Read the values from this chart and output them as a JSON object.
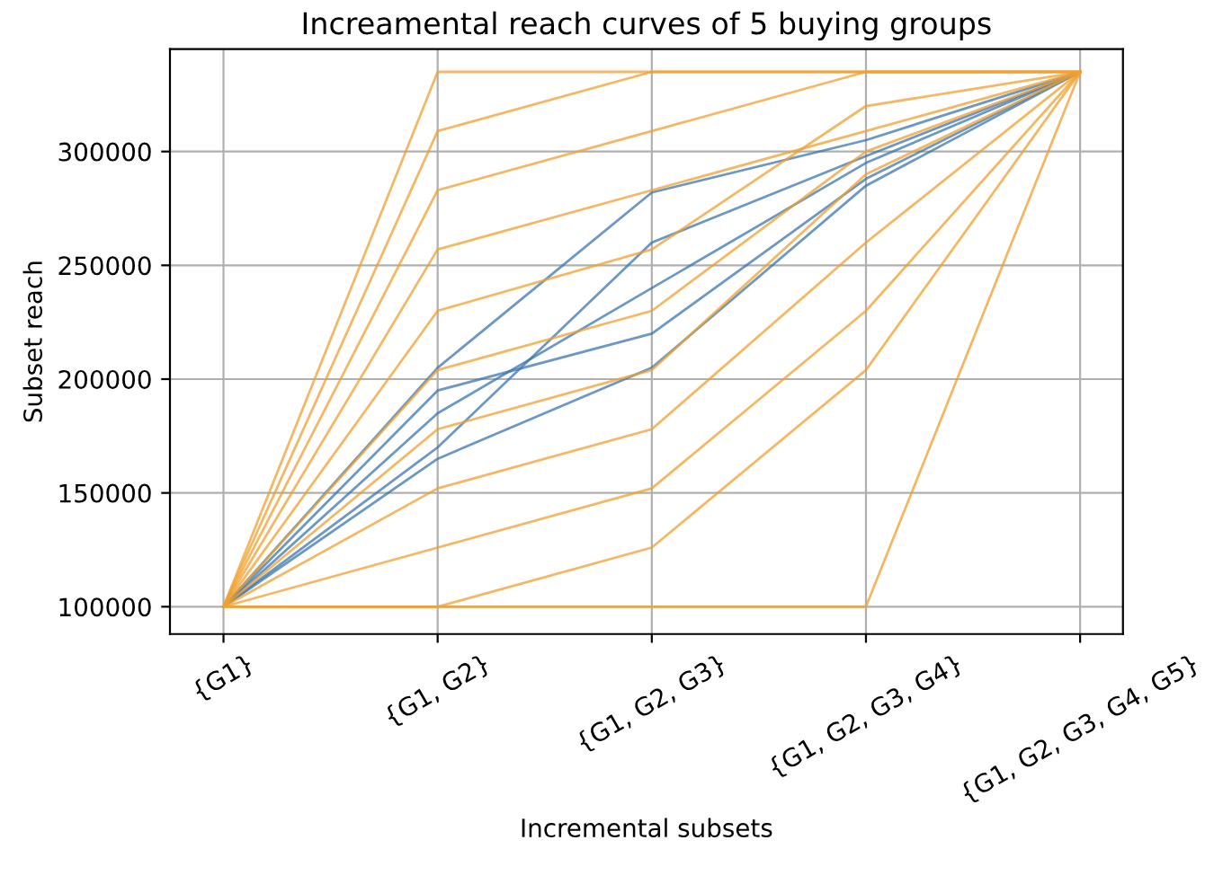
{
  "chart_data": {
    "type": "line",
    "title": "Increamental reach curves of 5 buying groups",
    "xlabel": "Incremental subsets",
    "ylabel": "Subset reach",
    "categories": [
      "{G1}",
      "{G1, G2}",
      "{G1, G2, G3}",
      "{G1, G2, G3, G4}",
      "{G1, G2, G3, G4, G5}"
    ],
    "ylim": [
      88000,
      345000
    ],
    "yticks": [
      100000,
      150000,
      200000,
      250000,
      300000
    ],
    "grid": true,
    "line_style": "solid",
    "series": [
      {
        "color": "#3a75b0",
        "values": [
          100000,
          165000,
          205000,
          285000,
          335000
        ]
      },
      {
        "color": "#3a75b0",
        "values": [
          100000,
          185000,
          240000,
          295000,
          335000
        ]
      },
      {
        "color": "#3a75b0",
        "values": [
          100000,
          205000,
          282000,
          305000,
          335000
        ]
      },
      {
        "color": "#3a75b0",
        "values": [
          100000,
          170000,
          260000,
          298000,
          335000
        ]
      },
      {
        "color": "#3a75b0",
        "values": [
          100000,
          195000,
          220000,
          288000,
          335000
        ]
      },
      {
        "color": "#f0a030",
        "values": [
          100000,
          100000,
          100000,
          100000,
          335000
        ]
      },
      {
        "color": "#f0a030",
        "values": [
          100000,
          335000,
          335000,
          335000,
          335000
        ]
      },
      {
        "color": "#f0a030",
        "values": [
          100000,
          309000,
          335000,
          335000,
          335000
        ]
      },
      {
        "color": "#f0a030",
        "values": [
          100000,
          283000,
          309000,
          335000,
          335000
        ]
      },
      {
        "color": "#f0a030",
        "values": [
          100000,
          257000,
          283000,
          309000,
          335000
        ]
      },
      {
        "color": "#f0a030",
        "values": [
          100000,
          230000,
          257000,
          320000,
          335000
        ]
      },
      {
        "color": "#f0a030",
        "values": [
          100000,
          204000,
          230000,
          300000,
          335000
        ]
      },
      {
        "color": "#f0a030",
        "values": [
          100000,
          178000,
          204000,
          290000,
          335000
        ]
      },
      {
        "color": "#f0a030",
        "values": [
          100000,
          152000,
          178000,
          260000,
          335000
        ]
      },
      {
        "color": "#f0a030",
        "values": [
          100000,
          126000,
          152000,
          230000,
          335000
        ]
      },
      {
        "color": "#f0a030",
        "values": [
          100000,
          100000,
          126000,
          204000,
          335000
        ]
      }
    ]
  }
}
